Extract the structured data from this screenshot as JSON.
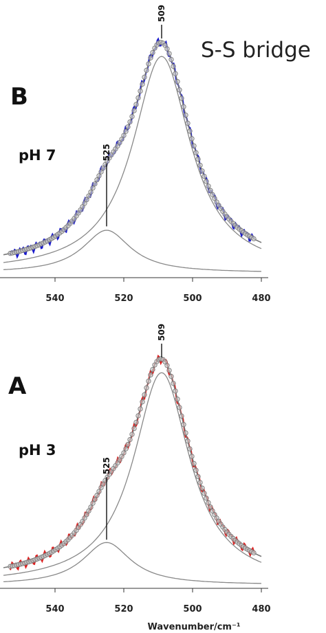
{
  "title": "S-S bridge",
  "chart_data": [
    {
      "type": "line",
      "panel": "B",
      "annotation": "pH 7",
      "xlabel": "",
      "xlim": [
        555,
        480
      ],
      "x_reversed": true,
      "xticks": [
        540,
        520,
        500,
        480
      ],
      "ylim": [
        0,
        1.05
      ],
      "data_color": "#1a1acc",
      "peak_labels": [
        {
          "text": "525",
          "x": 525,
          "y": 0.19
        },
        {
          "text": "509",
          "x": 509,
          "y": 1.0
        }
      ],
      "series": [
        {
          "name": "",
          "role": "fit-total",
          "center1": 509,
          "amp1": 0.94,
          "hwhm1": 10.3,
          "center2": 525,
          "amp2": 0.185,
          "hwhm2": 8.5
        },
        {
          "name": "",
          "role": "component",
          "center": 509,
          "amp": 0.94,
          "hwhm": 10.3
        },
        {
          "name": "",
          "role": "component",
          "center": 525,
          "amp": 0.185,
          "hwhm": 8.5
        }
      ]
    },
    {
      "type": "line",
      "panel": "A",
      "annotation": "pH 3",
      "xlabel": "Wavenumber/cm⁻¹",
      "xlim": [
        555,
        480
      ],
      "x_reversed": true,
      "xticks": [
        540,
        520,
        500,
        480
      ],
      "ylim": [
        0,
        1.05
      ],
      "data_color": "#dd2222",
      "peak_labels": [
        {
          "text": "525",
          "x": 525,
          "y": 0.19
        },
        {
          "text": "509",
          "x": 509,
          "y": 1.0
        }
      ],
      "series": [
        {
          "name": "",
          "role": "fit-total",
          "center1": 509,
          "amp1": 0.95,
          "hwhm1": 10.0,
          "center2": 525,
          "amp2": 0.19,
          "hwhm2": 8.5
        },
        {
          "name": "",
          "role": "component",
          "center": 509,
          "amp": 0.95,
          "hwhm": 10.0
        },
        {
          "name": "",
          "role": "component",
          "center": 525,
          "amp": 0.19,
          "hwhm": 8.5
        }
      ]
    }
  ]
}
